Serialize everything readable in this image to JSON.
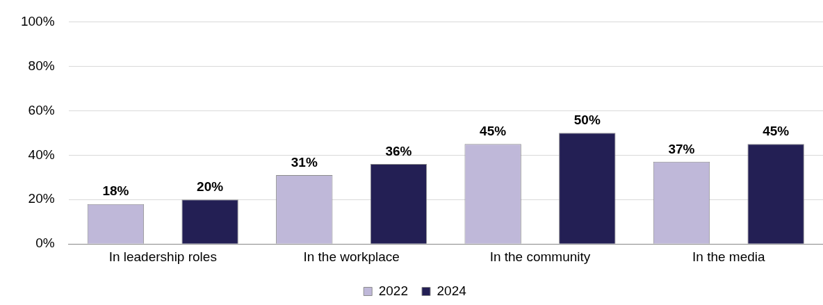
{
  "chart_data": {
    "type": "bar",
    "categories": [
      "In leadership roles",
      "In the workplace",
      "In the community",
      "In the media"
    ],
    "series": [
      {
        "name": "2022",
        "color": "#bfb8d9",
        "values": [
          18,
          31,
          45,
          37
        ],
        "value_labels": [
          "18%",
          "31%",
          "45%",
          "37%"
        ]
      },
      {
        "name": "2024",
        "color": "#231f54",
        "values": [
          20,
          36,
          50,
          45
        ],
        "value_labels": [
          "20%",
          "36%",
          "50%",
          "45%"
        ]
      }
    ],
    "ylim": [
      0,
      100
    ],
    "yticks": [
      {
        "value": 0,
        "label": "0%"
      },
      {
        "value": 20,
        "label": "20%"
      },
      {
        "value": 40,
        "label": "40%"
      },
      {
        "value": 60,
        "label": "60%"
      },
      {
        "value": 80,
        "label": "80%"
      },
      {
        "value": 100,
        "label": "100%"
      }
    ],
    "grid": "y",
    "legend": "bottom"
  }
}
